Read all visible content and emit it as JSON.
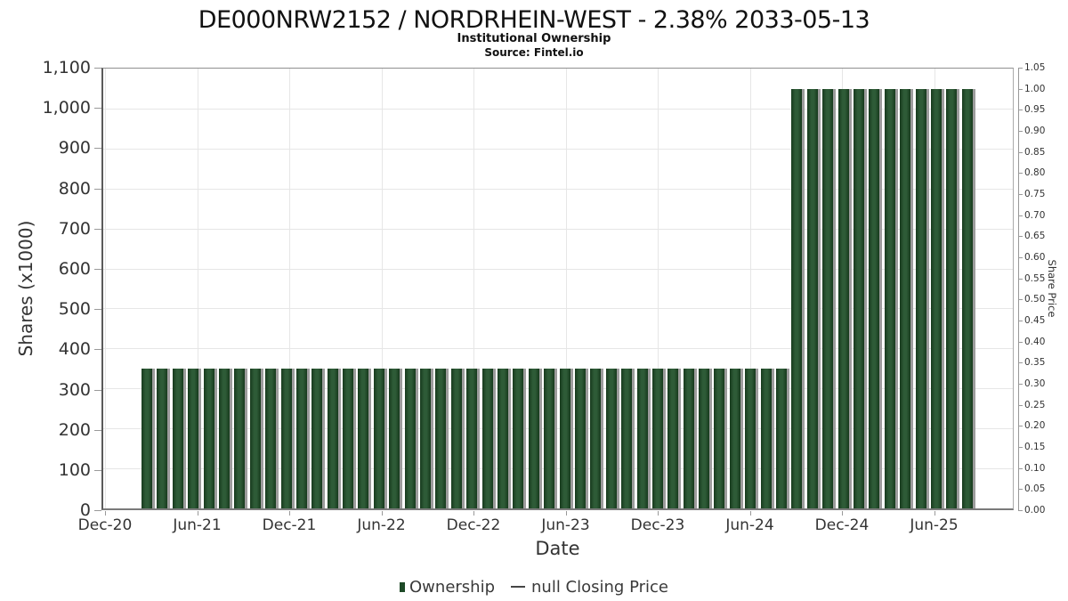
{
  "chart_data": {
    "type": "bar",
    "title": "DE000NRW2152 / NORDRHEIN-WEST - 2.38% 2033-05-13",
    "subtitle": "Institutional Ownership",
    "source": "Source: Fintel.io",
    "xlabel": "Date",
    "ylabel_left": "Shares (x1000)",
    "ylabel_right": "Share Price",
    "ylim_left": [
      0,
      1100
    ],
    "ylim_right": [
      0,
      1.05
    ],
    "grid": true,
    "legend_position": "bottom-center",
    "x_tick_labels": [
      "Dec-20",
      "Jun-21",
      "Dec-21",
      "Jun-22",
      "Dec-22",
      "Jun-23",
      "Dec-23",
      "Jun-24",
      "Dec-24",
      "Jun-25"
    ],
    "y_left_tick_labels": [
      "0",
      "100",
      "200",
      "300",
      "400",
      "500",
      "600",
      "700",
      "800",
      "900",
      "1,000",
      "1,100"
    ],
    "y_right_tick_labels": [
      "0.00",
      "0.05",
      "0.10",
      "0.15",
      "0.20",
      "0.25",
      "0.30",
      "0.35",
      "0.40",
      "0.45",
      "0.50",
      "0.55",
      "0.60",
      "0.65",
      "0.70",
      "0.75",
      "0.80",
      "0.85",
      "0.90",
      "0.95",
      "1.00",
      "1.05"
    ],
    "series": [
      {
        "name": "Ownership",
        "type": "bar",
        "axis": "left",
        "x": [
          "2021-03",
          "2021-04",
          "2021-05",
          "2021-06",
          "2021-07",
          "2021-08",
          "2021-09",
          "2021-10",
          "2021-11",
          "2021-12",
          "2022-01",
          "2022-02",
          "2022-03",
          "2022-04",
          "2022-05",
          "2022-06",
          "2022-07",
          "2022-08",
          "2022-09",
          "2022-10",
          "2022-11",
          "2022-12",
          "2023-01",
          "2023-02",
          "2023-03",
          "2023-04",
          "2023-05",
          "2023-06",
          "2023-07",
          "2023-08",
          "2023-09",
          "2023-10",
          "2023-11",
          "2023-12",
          "2024-01",
          "2024-02",
          "2024-03",
          "2024-04",
          "2024-05",
          "2024-06",
          "2024-07",
          "2024-08",
          "2024-09",
          "2024-10",
          "2024-11",
          "2024-12",
          "2025-01",
          "2025-02",
          "2025-03",
          "2025-04",
          "2025-05",
          "2025-06",
          "2025-07",
          "2025-08"
        ],
        "values": [
          350,
          350,
          350,
          350,
          350,
          350,
          350,
          350,
          350,
          350,
          350,
          350,
          350,
          350,
          350,
          350,
          350,
          350,
          350,
          350,
          350,
          350,
          350,
          350,
          350,
          350,
          350,
          350,
          350,
          350,
          350,
          350,
          350,
          350,
          350,
          350,
          350,
          350,
          350,
          350,
          350,
          350,
          1050,
          1050,
          1050,
          1050,
          1050,
          1050,
          1050,
          1050,
          1050,
          1050,
          1050,
          1050
        ]
      },
      {
        "name": "null Closing Price",
        "type": "line",
        "axis": "right",
        "values": []
      }
    ],
    "colors": {
      "bar_mid": "#2e5b37",
      "bar_dark": "#173a1d",
      "bar_shadow": "#9c9c9c",
      "legend_marker": "#1e4a27",
      "grid": "#e6e6e6",
      "text": "#333333"
    }
  },
  "legend": {
    "items": [
      {
        "label": "Ownership",
        "marker": "bar"
      },
      {
        "label": "null Closing Price",
        "marker": "line"
      }
    ]
  }
}
